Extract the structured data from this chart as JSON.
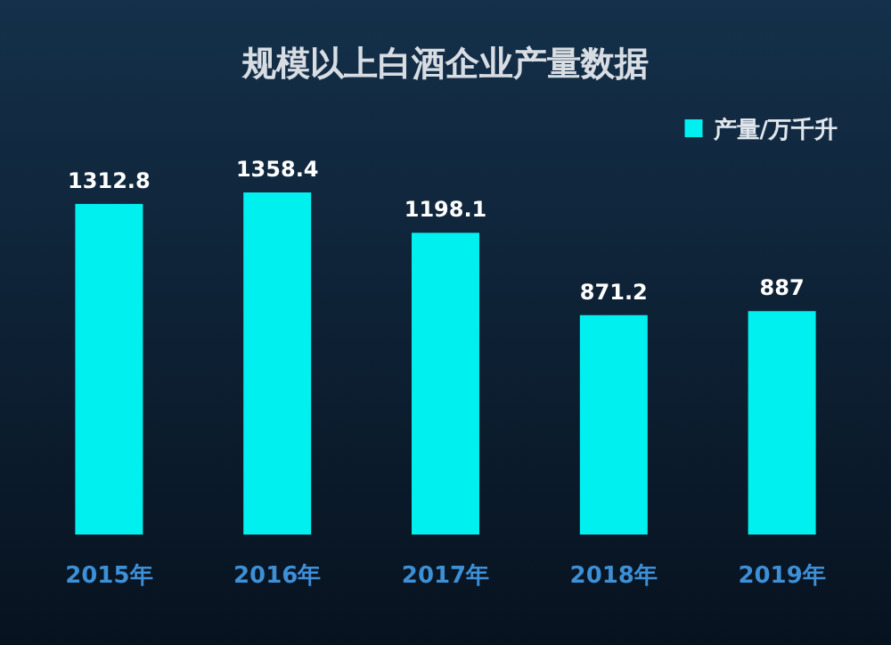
{
  "chart_data": {
    "type": "bar",
    "title": "规模以上白酒企业产量数据",
    "categories": [
      "2015年",
      "2016年",
      "2017年",
      "2018年",
      "2019年"
    ],
    "series": [
      {
        "name": "产量/万千升",
        "color": "#00f0f0",
        "values": [
          1312.8,
          1358.4,
          1198.1,
          871.2,
          887
        ]
      }
    ],
    "data_labels": true,
    "legend": "top right"
  }
}
